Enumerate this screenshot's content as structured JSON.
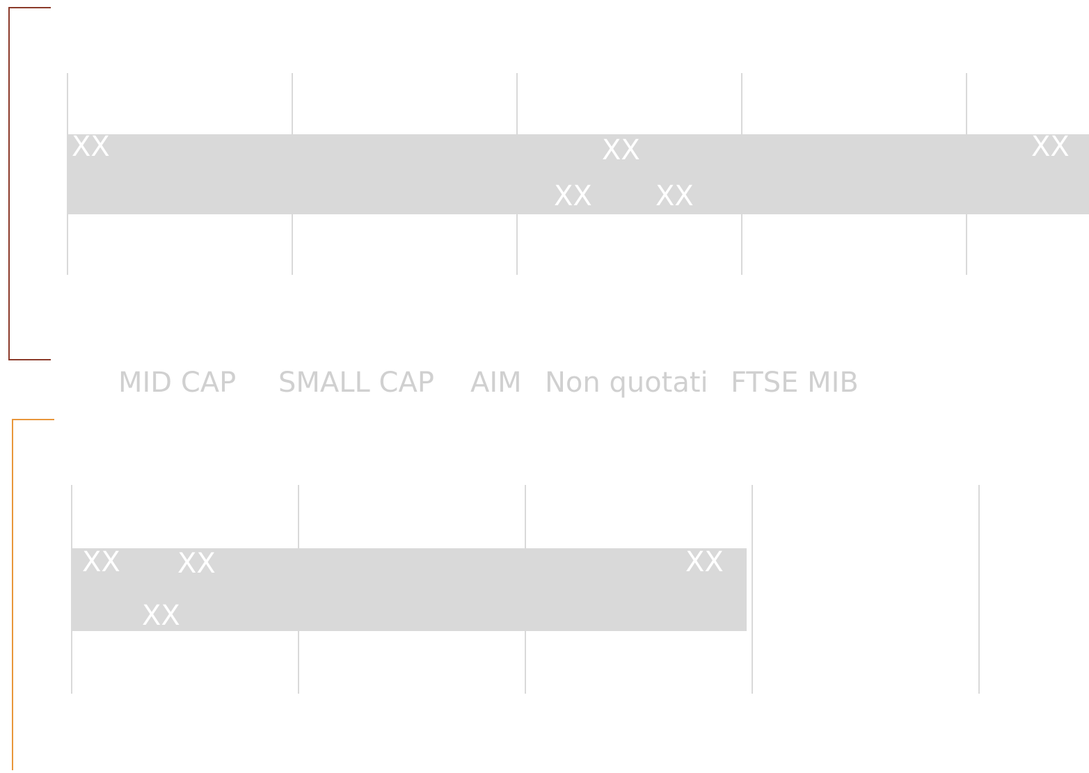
{
  "panels": [
    {
      "labels": [
        "XX",
        "XX",
        "XX",
        "XX",
        "XX"
      ]
    },
    {
      "labels": [
        "XX",
        "XX",
        "XX",
        "XX"
      ]
    }
  ],
  "legend": [
    "MID CAP",
    "SMALL CAP",
    "AIM",
    "Non quotati",
    "FTSE MIB"
  ]
}
